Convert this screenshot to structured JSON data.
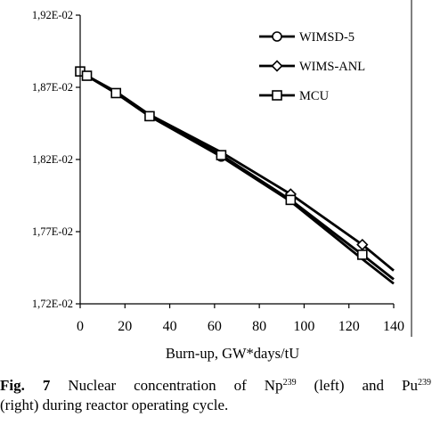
{
  "chart_data": {
    "type": "line",
    "title": "",
    "xlabel": "Burn-up, GW*days/tU",
    "ylabel": "",
    "xlim": [
      0,
      140
    ],
    "ylim": [
      0.0172,
      0.0192
    ],
    "x_ticks": [
      0,
      20,
      40,
      60,
      80,
      100,
      120,
      140
    ],
    "x_tick_labels": [
      "0",
      "20",
      "40",
      "60",
      "80",
      "100",
      "120",
      "140"
    ],
    "y_ticks": [
      0.0172,
      0.0177,
      0.0182,
      0.0187,
      0.0192
    ],
    "y_tick_labels": [
      "1,72E-02",
      "1,77E-02",
      "1,82E-02",
      "1,87E-02",
      "1,92E-02"
    ],
    "grid": false,
    "legend_position": "top-right",
    "series": [
      {
        "name": "WIMSD-5",
        "marker": "circle",
        "x": [
          0,
          3,
          16,
          31,
          63,
          94,
          126,
          140
        ],
        "y": [
          0.0188,
          0.01878,
          0.01866,
          0.0185,
          0.01822,
          0.01791,
          0.01751,
          0.01734
        ],
        "marker_points": [
          {
            "x": 63,
            "y": 0.01822
          }
        ]
      },
      {
        "name": "WIMS-ANL",
        "marker": "diamond",
        "x": [
          0,
          3,
          16,
          31,
          63,
          94,
          126,
          140
        ],
        "y": [
          0.0188,
          0.01878,
          0.01867,
          0.01851,
          0.01825,
          0.01796,
          0.01761,
          0.01743
        ],
        "marker_points": [
          {
            "x": 94,
            "y": 0.01796
          },
          {
            "x": 126,
            "y": 0.01761
          }
        ]
      },
      {
        "name": "MCU",
        "marker": "square",
        "x": [
          0,
          3,
          16,
          31,
          63,
          94,
          126,
          140
        ],
        "y": [
          0.01881,
          0.01878,
          0.01866,
          0.0185,
          0.01823,
          0.01792,
          0.01754,
          0.01737
        ],
        "marker_points": [
          {
            "x": 0,
            "y": 0.01881
          },
          {
            "x": 3,
            "y": 0.01878
          },
          {
            "x": 16,
            "y": 0.01866
          },
          {
            "x": 31,
            "y": 0.0185
          },
          {
            "x": 63,
            "y": 0.01823
          },
          {
            "x": 94,
            "y": 0.01792
          },
          {
            "x": 126,
            "y": 0.01754
          }
        ]
      }
    ]
  },
  "caption": {
    "label": "Fig. 7",
    "text_part1": " Nuclear concentration of Np",
    "sup1": "239",
    "text_part2": " (left) and Pu",
    "sup2": "239",
    "text_part3": "(right) during reactor operating cycle."
  }
}
